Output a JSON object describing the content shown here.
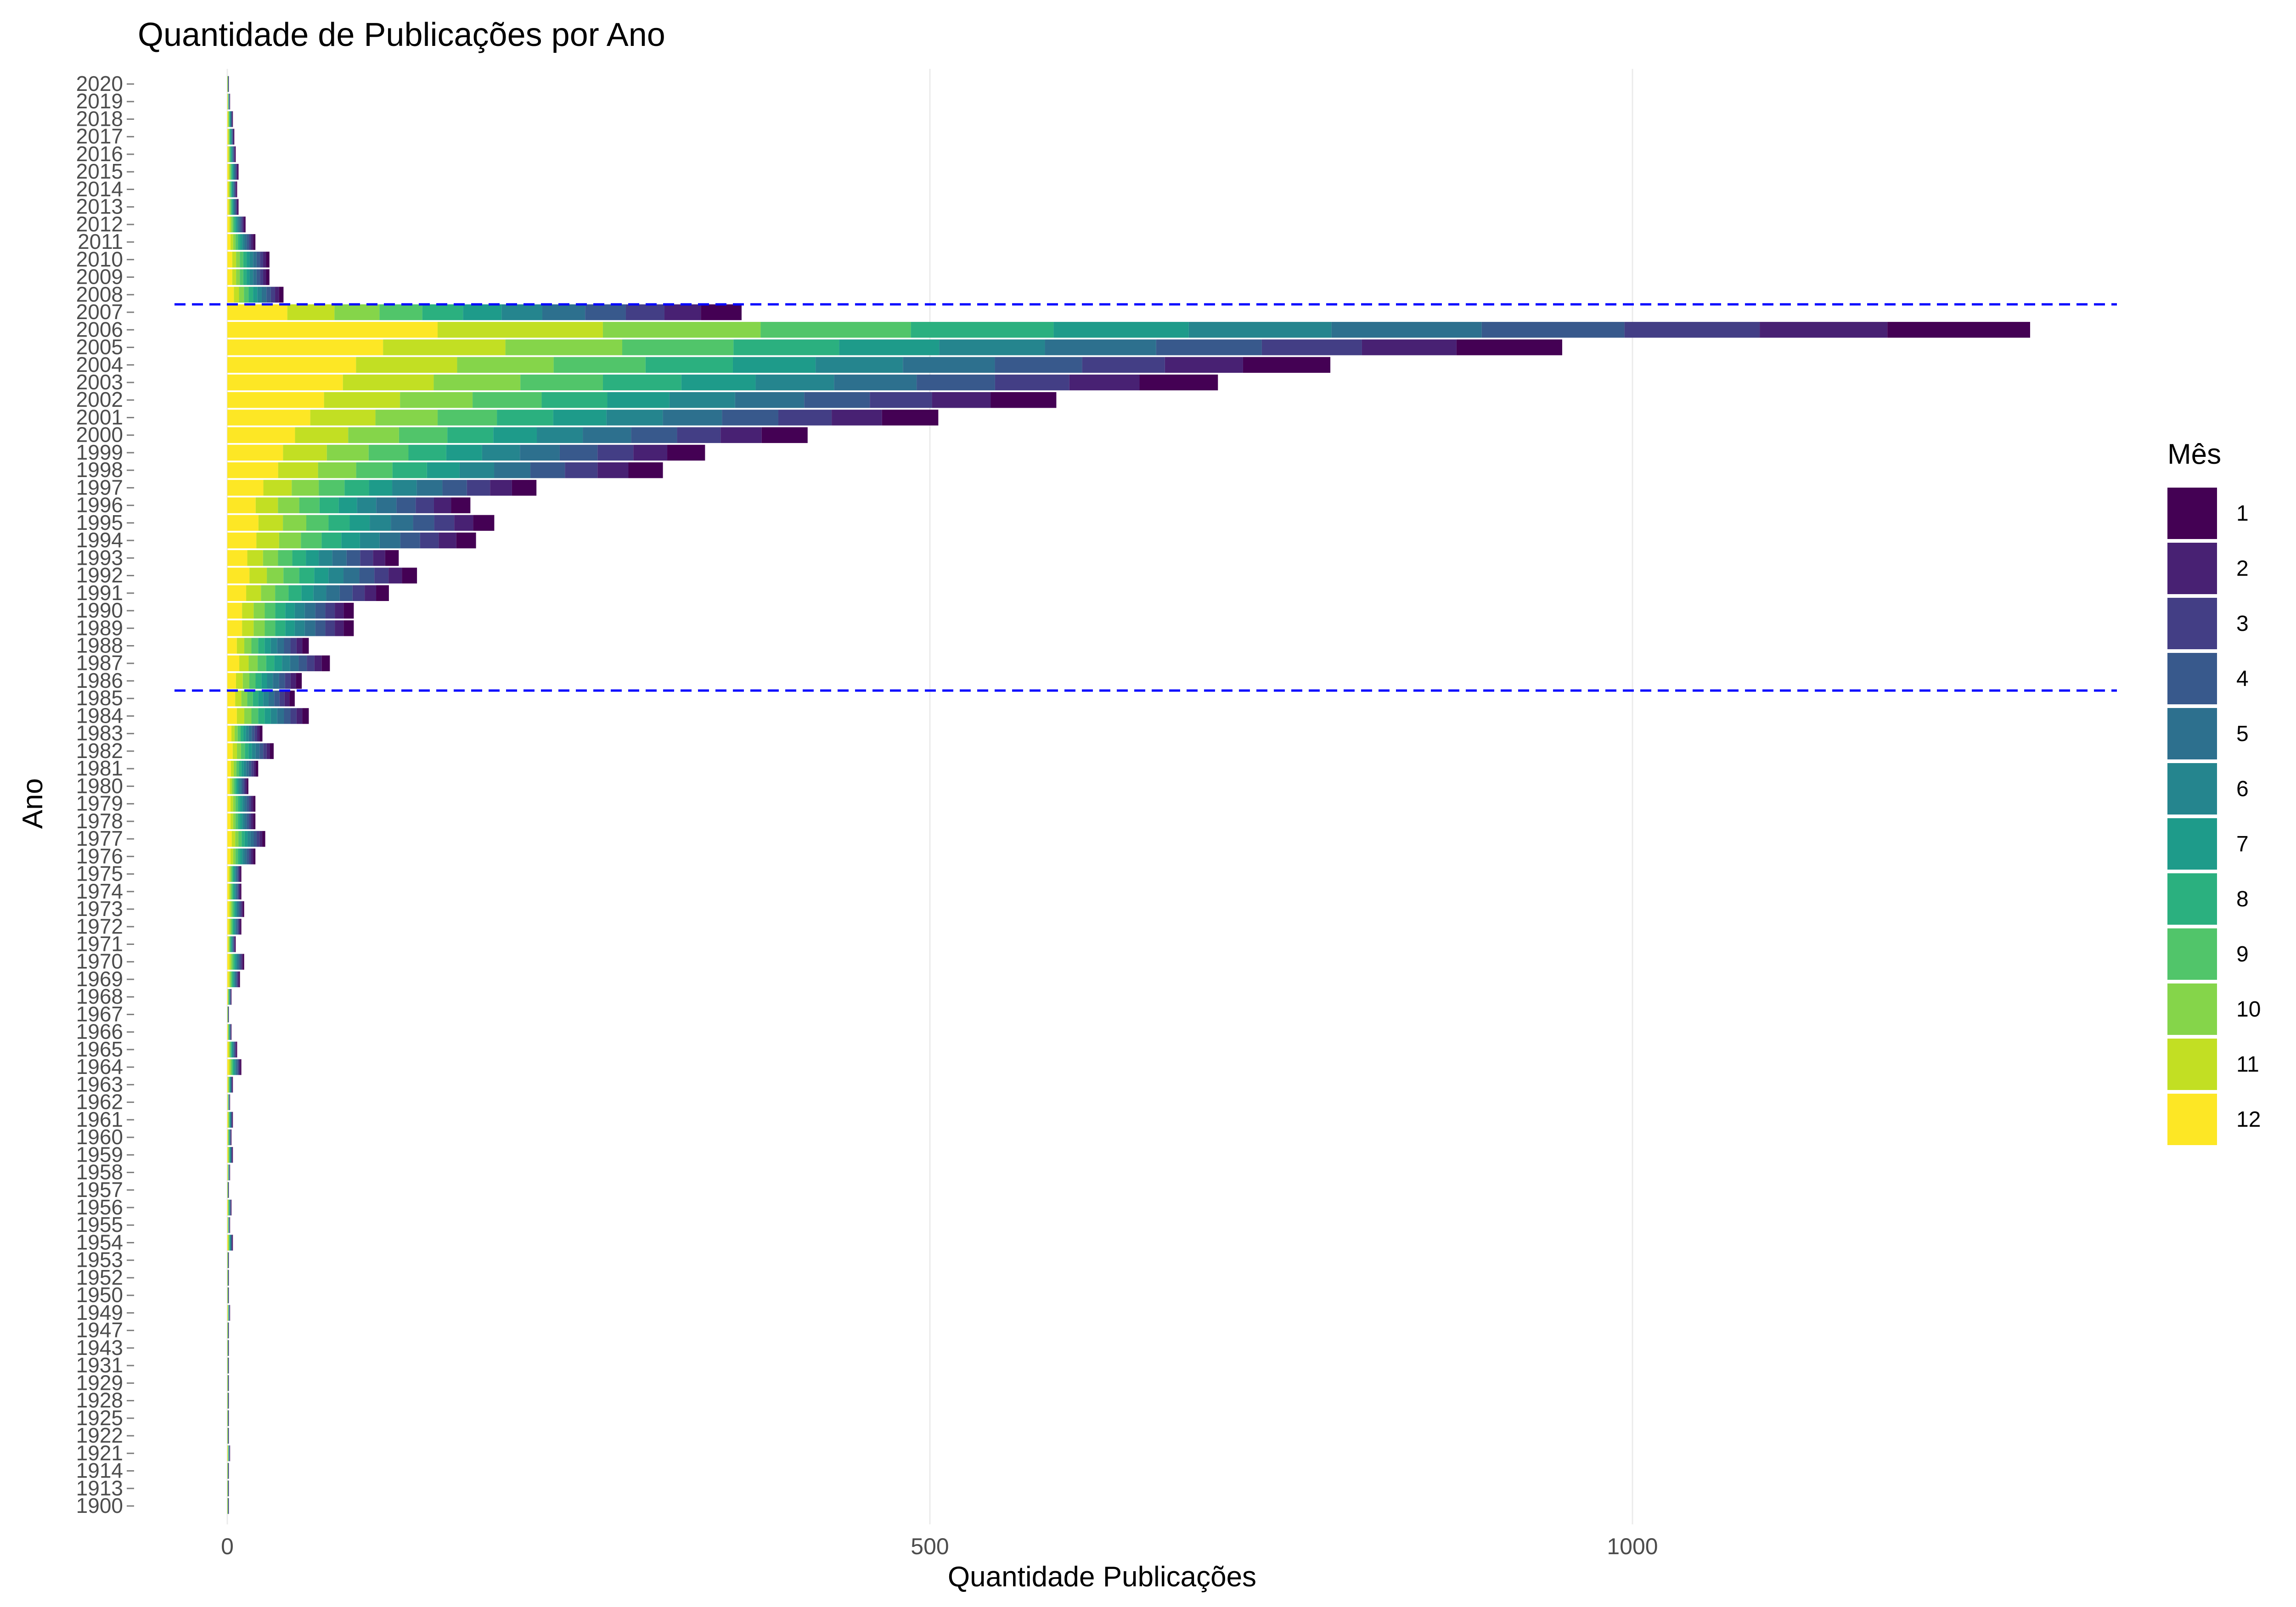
{
  "chart_data": {
    "type": "bar",
    "orientation": "horizontal",
    "stacked": true,
    "title": "Quantidade de Publicações por Ano",
    "xlabel": "Quantidade Publicações",
    "ylabel": "Ano",
    "xlim": [
      0,
      1300
    ],
    "x_ticks": [
      0,
      500,
      1000
    ],
    "grid": "vertical-major",
    "legend": {
      "title": "Mês",
      "position": "right"
    },
    "colors": {
      "1": "#440154",
      "2": "#482173",
      "3": "#433E85",
      "4": "#38598C",
      "5": "#2D708E",
      "6": "#25858E",
      "7": "#1E9B8A",
      "8": "#2BB07F",
      "9": "#51C56A",
      "10": "#85D54A",
      "11": "#C2DF23",
      "12": "#FDE725"
    },
    "series_order_from_zero": [
      "12",
      "11",
      "10",
      "9",
      "8",
      "7",
      "6",
      "5",
      "4",
      "3",
      "2",
      "1"
    ],
    "reference_lines": [
      {
        "axis": "y",
        "category": "1986",
        "style": "dashed",
        "color": "#0000FF"
      },
      {
        "axis": "y",
        "category": "2008",
        "style": "dashed",
        "color": "#0000FF"
      }
    ],
    "categories": [
      "1900",
      "1913",
      "1914",
      "1921",
      "1922",
      "1925",
      "1928",
      "1929",
      "1931",
      "1943",
      "1947",
      "1949",
      "1950",
      "1952",
      "1953",
      "1954",
      "1955",
      "1956",
      "1957",
      "1958",
      "1959",
      "1960",
      "1961",
      "1962",
      "1963",
      "1964",
      "1965",
      "1966",
      "1967",
      "1968",
      "1969",
      "1970",
      "1971",
      "1972",
      "1973",
      "1974",
      "1975",
      "1976",
      "1977",
      "1978",
      "1979",
      "1980",
      "1981",
      "1982",
      "1983",
      "1984",
      "1985",
      "1986",
      "1987",
      "1988",
      "1989",
      "1990",
      "1991",
      "1992",
      "1993",
      "1994",
      "1995",
      "1996",
      "1997",
      "1998",
      "1999",
      "2000",
      "2001",
      "2002",
      "2003",
      "2004",
      "2005",
      "2006",
      "2007",
      "2008",
      "2009",
      "2010",
      "2011",
      "2012",
      "2013",
      "2014",
      "2015",
      "2016",
      "2017",
      "2018",
      "2019",
      "2020"
    ],
    "totals": [
      1,
      1,
      1,
      2,
      1,
      1,
      1,
      1,
      1,
      1,
      1,
      2,
      1,
      1,
      1,
      4,
      2,
      3,
      1,
      2,
      4,
      3,
      4,
      2,
      4,
      10,
      7,
      3,
      1,
      3,
      9,
      12,
      6,
      10,
      12,
      10,
      10,
      20,
      27,
      20,
      20,
      15,
      22,
      33,
      25,
      58,
      48,
      53,
      73,
      58,
      90,
      90,
      115,
      135,
      122,
      177,
      190,
      173,
      220,
      310,
      340,
      413,
      506,
      590,
      705,
      785,
      950,
      1283,
      366,
      40,
      30,
      30,
      20,
      13,
      8,
      7,
      8,
      6,
      5,
      4,
      2,
      1
    ]
  }
}
